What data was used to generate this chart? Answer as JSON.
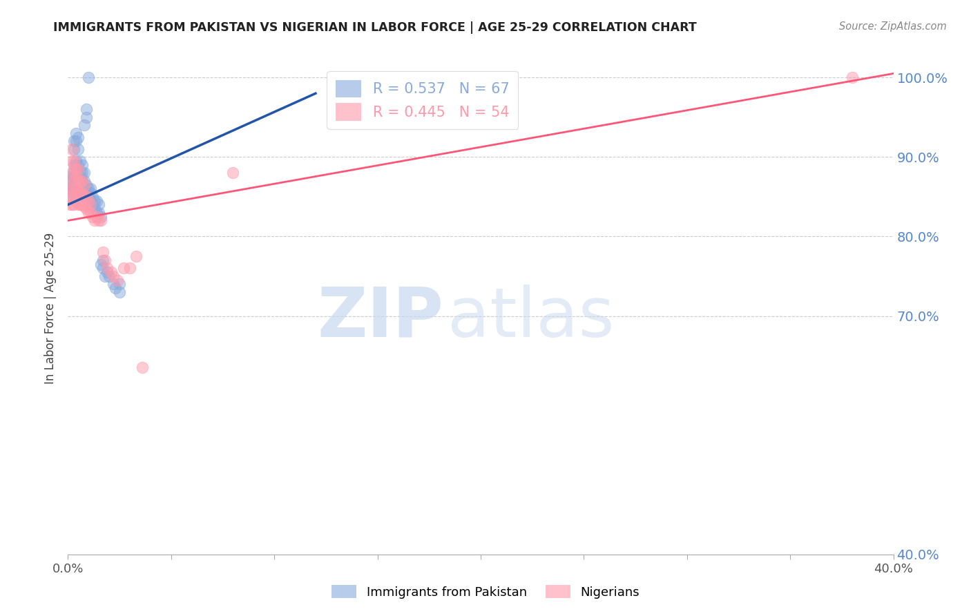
{
  "title": "IMMIGRANTS FROM PAKISTAN VS NIGERIAN IN LABOR FORCE | AGE 25-29 CORRELATION CHART",
  "source": "Source: ZipAtlas.com",
  "ylabel": "In Labor Force | Age 25-29",
  "xlim": [
    0.0,
    0.4
  ],
  "ylim": [
    0.4,
    1.02
  ],
  "y_ticks": [
    0.4,
    0.7,
    0.8,
    0.9,
    1.0
  ],
  "y_tick_labels": [
    "40.0%",
    "70.0%",
    "80.0%",
    "90.0%",
    "100.0%"
  ],
  "x_ticks": [
    0.0,
    0.05,
    0.1,
    0.15,
    0.2,
    0.25,
    0.3,
    0.35,
    0.4
  ],
  "x_tick_labels": [
    "0.0%",
    "",
    "",
    "",
    "",
    "",
    "",
    "",
    "40.0%"
  ],
  "pakistan_R": 0.537,
  "pakistan_N": 67,
  "nigeria_R": 0.445,
  "nigeria_N": 54,
  "pakistan_color": "#88AADD",
  "nigeria_color": "#FF99AA",
  "pakistan_line_color": "#2255AA",
  "nigeria_line_color": "#FF5577",
  "background_color": "#FFFFFF",
  "grid_color": "#CCCCCC",
  "watermark_zip": "ZIP",
  "watermark_atlas": "atlas",
  "title_color": "#222222",
  "axis_label_color": "#444444",
  "right_tick_color": "#5588CC",
  "pakistan_scatter": [
    [
      0.001,
      0.847
    ],
    [
      0.001,
      0.86
    ],
    [
      0.001,
      0.875
    ],
    [
      0.002,
      0.855
    ],
    [
      0.002,
      0.862
    ],
    [
      0.002,
      0.87
    ],
    [
      0.002,
      0.878
    ],
    [
      0.003,
      0.862
    ],
    [
      0.003,
      0.875
    ],
    [
      0.003,
      0.89
    ],
    [
      0.003,
      0.91
    ],
    [
      0.003,
      0.92
    ],
    [
      0.004,
      0.86
    ],
    [
      0.004,
      0.875
    ],
    [
      0.004,
      0.89
    ],
    [
      0.004,
      0.895
    ],
    [
      0.004,
      0.92
    ],
    [
      0.004,
      0.93
    ],
    [
      0.005,
      0.855
    ],
    [
      0.005,
      0.87
    ],
    [
      0.005,
      0.89
    ],
    [
      0.005,
      0.91
    ],
    [
      0.005,
      0.925
    ],
    [
      0.006,
      0.86
    ],
    [
      0.006,
      0.875
    ],
    [
      0.006,
      0.88
    ],
    [
      0.006,
      0.895
    ],
    [
      0.007,
      0.855
    ],
    [
      0.007,
      0.87
    ],
    [
      0.007,
      0.88
    ],
    [
      0.007,
      0.89
    ],
    [
      0.008,
      0.85
    ],
    [
      0.008,
      0.86
    ],
    [
      0.008,
      0.87
    ],
    [
      0.008,
      0.88
    ],
    [
      0.009,
      0.85
    ],
    [
      0.009,
      0.855
    ],
    [
      0.009,
      0.865
    ],
    [
      0.01,
      0.84
    ],
    [
      0.01,
      0.855
    ],
    [
      0.01,
      0.86
    ],
    [
      0.011,
      0.845
    ],
    [
      0.011,
      0.855
    ],
    [
      0.011,
      0.86
    ],
    [
      0.012,
      0.84
    ],
    [
      0.012,
      0.85
    ],
    [
      0.013,
      0.835
    ],
    [
      0.013,
      0.845
    ],
    [
      0.014,
      0.83
    ],
    [
      0.014,
      0.845
    ],
    [
      0.015,
      0.83
    ],
    [
      0.015,
      0.84
    ],
    [
      0.016,
      0.765
    ],
    [
      0.016,
      0.825
    ],
    [
      0.017,
      0.76
    ],
    [
      0.017,
      0.77
    ],
    [
      0.018,
      0.75
    ],
    [
      0.019,
      0.755
    ],
    [
      0.02,
      0.75
    ],
    [
      0.022,
      0.74
    ],
    [
      0.023,
      0.735
    ],
    [
      0.025,
      0.73
    ],
    [
      0.025,
      0.74
    ],
    [
      0.008,
      0.94
    ],
    [
      0.009,
      0.95
    ],
    [
      0.009,
      0.96
    ],
    [
      0.01,
      1.0
    ]
  ],
  "nigeria_scatter": [
    [
      0.001,
      0.84
    ],
    [
      0.001,
      0.855
    ],
    [
      0.001,
      0.87
    ],
    [
      0.002,
      0.84
    ],
    [
      0.002,
      0.85
    ],
    [
      0.002,
      0.86
    ],
    [
      0.002,
      0.88
    ],
    [
      0.002,
      0.895
    ],
    [
      0.002,
      0.91
    ],
    [
      0.003,
      0.84
    ],
    [
      0.003,
      0.855
    ],
    [
      0.003,
      0.87
    ],
    [
      0.003,
      0.885
    ],
    [
      0.003,
      0.895
    ],
    [
      0.004,
      0.845
    ],
    [
      0.004,
      0.86
    ],
    [
      0.004,
      0.875
    ],
    [
      0.004,
      0.885
    ],
    [
      0.005,
      0.84
    ],
    [
      0.005,
      0.855
    ],
    [
      0.005,
      0.87
    ],
    [
      0.005,
      0.885
    ],
    [
      0.006,
      0.84
    ],
    [
      0.006,
      0.855
    ],
    [
      0.006,
      0.87
    ],
    [
      0.007,
      0.84
    ],
    [
      0.007,
      0.855
    ],
    [
      0.007,
      0.87
    ],
    [
      0.008,
      0.838
    ],
    [
      0.008,
      0.852
    ],
    [
      0.008,
      0.865
    ],
    [
      0.009,
      0.835
    ],
    [
      0.009,
      0.85
    ],
    [
      0.01,
      0.83
    ],
    [
      0.01,
      0.845
    ],
    [
      0.011,
      0.83
    ],
    [
      0.011,
      0.84
    ],
    [
      0.012,
      0.825
    ],
    [
      0.013,
      0.82
    ],
    [
      0.014,
      0.825
    ],
    [
      0.015,
      0.82
    ],
    [
      0.016,
      0.82
    ],
    [
      0.017,
      0.78
    ],
    [
      0.018,
      0.77
    ],
    [
      0.019,
      0.76
    ],
    [
      0.021,
      0.755
    ],
    [
      0.022,
      0.75
    ],
    [
      0.024,
      0.745
    ],
    [
      0.027,
      0.76
    ],
    [
      0.03,
      0.76
    ],
    [
      0.033,
      0.775
    ],
    [
      0.036,
      0.635
    ],
    [
      0.08,
      0.88
    ],
    [
      0.38,
      1.0
    ]
  ],
  "pak_line_x": [
    0.0,
    0.12
  ],
  "pak_line_y": [
    0.84,
    0.98
  ],
  "nig_line_x": [
    0.0,
    0.4
  ],
  "nig_line_y": [
    0.82,
    1.005
  ]
}
